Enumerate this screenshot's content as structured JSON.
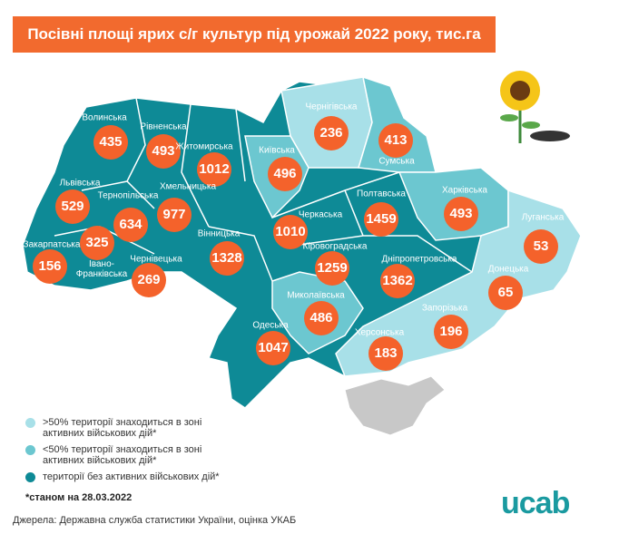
{
  "title": "Посівні площі ярих с/г культур під урожай 2022 року, тис.га",
  "regions": [
    {
      "name": "Волинська",
      "value": 435,
      "color": "#0e8a96"
    },
    {
      "name": "Рівненська",
      "value": 493,
      "color": "#0e8a96"
    },
    {
      "name": "Житомирська",
      "value": 1012,
      "color": "#0e8a96"
    },
    {
      "name": "Київська",
      "value": 496,
      "color": "#6cc7d0"
    },
    {
      "name": "Чернігівська",
      "value": 236,
      "color": "#a8e0e8"
    },
    {
      "name": "Сумська",
      "value": 413,
      "color": "#6cc7d0"
    },
    {
      "name": "Харківська",
      "value": 493,
      "color": "#6cc7d0"
    },
    {
      "name": "Луганська",
      "value": 53,
      "color": "#a8e0e8"
    },
    {
      "name": "Донецька",
      "value": 65,
      "color": "#a8e0e8"
    },
    {
      "name": "Запорізька",
      "value": 196,
      "color": "#a8e0e8"
    },
    {
      "name": "Херсонська",
      "value": 183,
      "color": "#a8e0e8"
    },
    {
      "name": "Миколаївська",
      "value": 486,
      "color": "#6cc7d0"
    },
    {
      "name": "Одеська",
      "value": 1047,
      "color": "#0e8a96"
    },
    {
      "name": "Кіровоградська",
      "value": 1259,
      "color": "#0e8a96"
    },
    {
      "name": "Дніпропетровська",
      "value": 1362,
      "color": "#0e8a96"
    },
    {
      "name": "Полтавська",
      "value": 1459,
      "color": "#0e8a96"
    },
    {
      "name": "Черкаська",
      "value": 1010,
      "color": "#0e8a96"
    },
    {
      "name": "Вінницька",
      "value": 1328,
      "color": "#0e8a96"
    },
    {
      "name": "Хмельницька",
      "value": 977,
      "color": "#0e8a96"
    },
    {
      "name": "Тернопільська",
      "value": 634,
      "color": "#0e8a96"
    },
    {
      "name": "Львівська",
      "value": 529,
      "color": "#0e8a96"
    },
    {
      "name": "Закарпатська",
      "value": 156,
      "color": "#0e8a96"
    },
    {
      "name": "Івано-Франківська",
      "value": 325,
      "color": "#0e8a96"
    },
    {
      "name": "Чернівецька",
      "value": 269,
      "color": "#0e8a96"
    }
  ],
  "legend": [
    {
      "label": ">50% території знаходиться в зоні активних військових дій*",
      "color": "#a8e0e8"
    },
    {
      "label": "<50% території знаходиться в зоні активних військових дій*",
      "color": "#6cc7d0"
    },
    {
      "label": "території без активних військових дій*",
      "color": "#0e8a96"
    }
  ],
  "footnote": "*станом на 28.03.2022",
  "source": "Джерела: Державна служба статистики України, оцінка УКАБ",
  "logo": "ucab"
}
